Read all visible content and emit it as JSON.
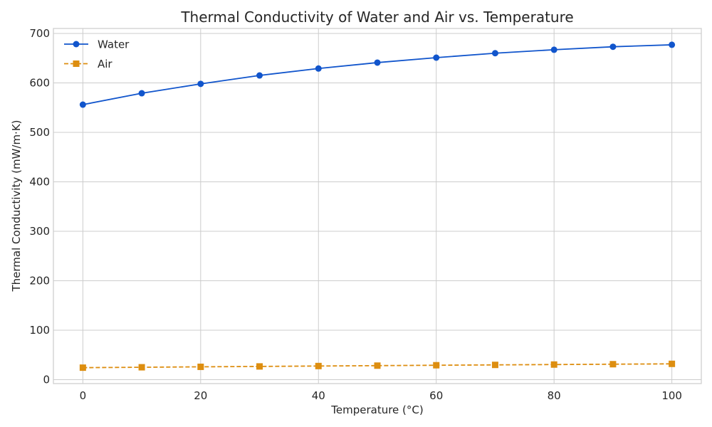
{
  "chart_data": {
    "type": "line",
    "title": "Thermal Conductivity of Water and Air vs. Temperature",
    "xlabel": "Temperature (°C)",
    "ylabel": "Thermal Conductivity (mW/m·K)",
    "x": [
      0,
      10,
      20,
      30,
      40,
      50,
      60,
      70,
      80,
      90,
      100
    ],
    "xlim": [
      -5,
      105
    ],
    "ylim": [
      -8,
      710
    ],
    "xticks": [
      0,
      20,
      40,
      60,
      80,
      100
    ],
    "yticks": [
      0,
      100,
      200,
      300,
      400,
      500,
      600,
      700
    ],
    "grid": true,
    "legend_position": "top-left",
    "series": [
      {
        "name": "Water",
        "values": [
          556,
          579,
          598,
          615,
          629,
          641,
          651,
          660,
          667,
          673,
          677
        ],
        "color": "#1155cc",
        "marker": "circle",
        "linestyle": "solid"
      },
      {
        "name": "Air",
        "values": [
          24.2,
          25.0,
          25.9,
          26.7,
          27.5,
          28.3,
          29.1,
          29.8,
          30.5,
          31.2,
          31.9
        ],
        "color": "#dd8e10",
        "marker": "square",
        "linestyle": "dashed"
      }
    ]
  }
}
